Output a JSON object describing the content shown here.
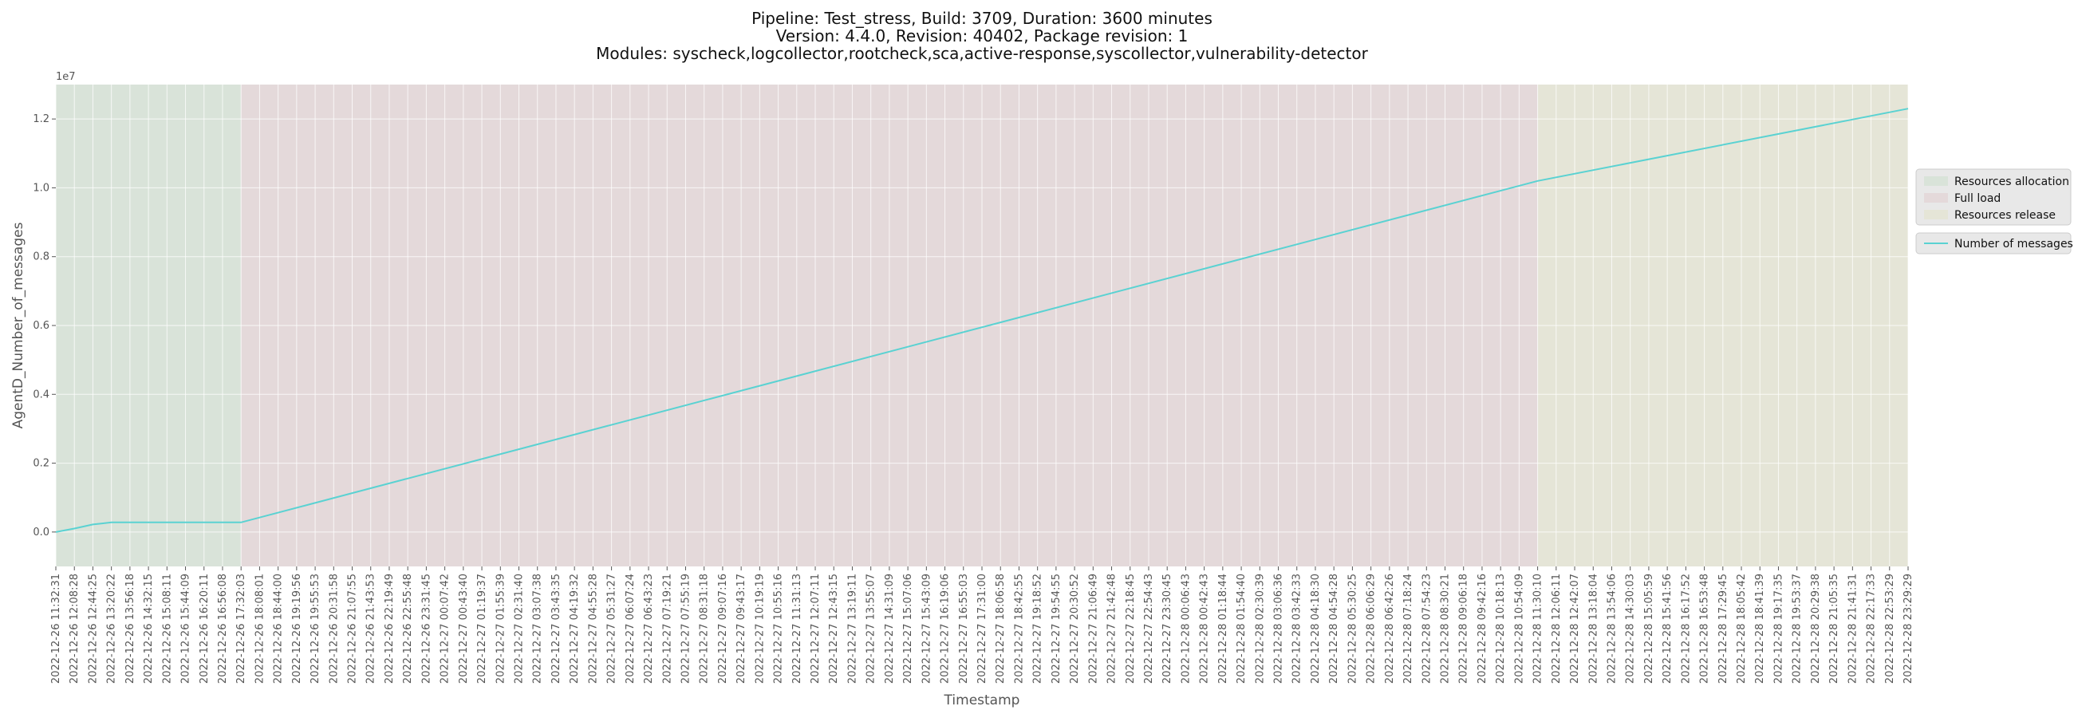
{
  "chart_data": {
    "type": "line",
    "title_lines": [
      "Pipeline: Test_stress, Build: 3709, Duration: 3600 minutes",
      "Version: 4.4.0, Revision: 40402, Package revision: 1",
      "Modules: syscheck,logcollector,rootcheck,sca,active-response,syscollector,vulnerability-detector"
    ],
    "xlabel": "Timestamp",
    "ylabel": "AgentD_Number_of_messages",
    "y_offset_label": "1e7",
    "ylim": [
      -0.1,
      1.3
    ],
    "yticks": [
      0.0,
      0.2,
      0.4,
      0.6,
      0.8,
      1.0,
      1.2
    ],
    "ytick_labels": [
      "0.0",
      "0.2",
      "0.4",
      "0.6",
      "0.8",
      "1.0",
      "1.2"
    ],
    "grid": true,
    "legend_position": "right",
    "x_tick_labels": [
      "2022-12-26 11:32:31",
      "2022-12-26 12:08:28",
      "2022-12-26 12:44:25",
      "2022-12-26 13:20:22",
      "2022-12-26 13:56:18",
      "2022-12-26 14:32:15",
      "2022-12-26 15:08:11",
      "2022-12-26 15:44:09",
      "2022-12-26 16:20:11",
      "2022-12-26 16:56:08",
      "2022-12-26 17:32:03",
      "2022-12-26 18:08:01",
      "2022-12-26 18:44:00",
      "2022-12-26 19:19:56",
      "2022-12-26 19:55:53",
      "2022-12-26 20:31:58",
      "2022-12-26 21:07:55",
      "2022-12-26 21:43:53",
      "2022-12-26 22:19:49",
      "2022-12-26 22:55:48",
      "2022-12-26 23:31:45",
      "2022-12-27 00:07:42",
      "2022-12-27 00:43:40",
      "2022-12-27 01:19:37",
      "2022-12-27 01:55:39",
      "2022-12-27 02:31:40",
      "2022-12-27 03:07:38",
      "2022-12-27 03:43:35",
      "2022-12-27 04:19:32",
      "2022-12-27 04:55:28",
      "2022-12-27 05:31:27",
      "2022-12-27 06:07:24",
      "2022-12-27 06:43:23",
      "2022-12-27 07:19:21",
      "2022-12-27 07:55:19",
      "2022-12-27 08:31:18",
      "2022-12-27 09:07:16",
      "2022-12-27 09:43:17",
      "2022-12-27 10:19:19",
      "2022-12-27 10:55:16",
      "2022-12-27 11:31:13",
      "2022-12-27 12:07:11",
      "2022-12-27 12:43:15",
      "2022-12-27 13:19:11",
      "2022-12-27 13:55:07",
      "2022-12-27 14:31:09",
      "2022-12-27 15:07:06",
      "2022-12-27 15:43:09",
      "2022-12-27 16:19:06",
      "2022-12-27 16:55:03",
      "2022-12-27 17:31:00",
      "2022-12-27 18:06:58",
      "2022-12-27 18:42:55",
      "2022-12-27 19:18:52",
      "2022-12-27 19:54:55",
      "2022-12-27 20:30:52",
      "2022-12-27 21:06:49",
      "2022-12-27 21:42:48",
      "2022-12-27 22:18:45",
      "2022-12-27 22:54:43",
      "2022-12-27 23:30:45",
      "2022-12-28 00:06:43",
      "2022-12-28 00:42:43",
      "2022-12-28 01:18:44",
      "2022-12-28 01:54:40",
      "2022-12-28 02:30:39",
      "2022-12-28 03:06:36",
      "2022-12-28 03:42:33",
      "2022-12-28 04:18:30",
      "2022-12-28 04:54:28",
      "2022-12-28 05:30:25",
      "2022-12-28 06:06:29",
      "2022-12-28 06:42:26",
      "2022-12-28 07:18:24",
      "2022-12-28 07:54:23",
      "2022-12-28 08:30:21",
      "2022-12-28 09:06:18",
      "2022-12-28 09:42:16",
      "2022-12-28 10:18:13",
      "2022-12-28 10:54:09",
      "2022-12-28 11:30:10",
      "2022-12-28 12:06:11",
      "2022-12-28 12:42:07",
      "2022-12-28 13:18:04",
      "2022-12-28 13:54:06",
      "2022-12-28 14:30:03",
      "2022-12-28 15:05:59",
      "2022-12-28 15:41:56",
      "2022-12-28 16:17:52",
      "2022-12-28 16:53:48",
      "2022-12-28 17:29:45",
      "2022-12-28 18:05:42",
      "2022-12-28 18:41:39",
      "2022-12-28 19:17:35",
      "2022-12-28 19:53:37",
      "2022-12-28 20:29:38",
      "2022-12-28 21:05:35",
      "2022-12-28 21:41:31",
      "2022-12-28 22:17:33",
      "2022-12-28 22:53:29",
      "2022-12-28 23:29:29"
    ],
    "phases": [
      {
        "name": "Resources allocation",
        "start": "2022-12-26 11:32:31",
        "end": "2022-12-26 17:32:03",
        "color": "#d9e3d9"
      },
      {
        "name": "Full load",
        "start": "2022-12-26 17:32:03",
        "end": "2022-12-28 11:30:10",
        "color": "#e4d9da"
      },
      {
        "name": "Resources release",
        "start": "2022-12-28 11:30:10",
        "end": "2022-12-28 23:29:29",
        "color": "#e5e5d7"
      }
    ],
    "series": [
      {
        "name": "Number of messages",
        "color": "#5ad2d2",
        "x": [
          "2022-12-26 11:32:31",
          "2022-12-26 12:08:28",
          "2022-12-26 12:44:25",
          "2022-12-26 13:20:22",
          "2022-12-26 17:32:03",
          "2022-12-28 11:30:10",
          "2022-12-28 23:29:29"
        ],
        "y": [
          0.0,
          0.01,
          0.022,
          0.028,
          0.028,
          1.02,
          1.23
        ]
      }
    ]
  }
}
